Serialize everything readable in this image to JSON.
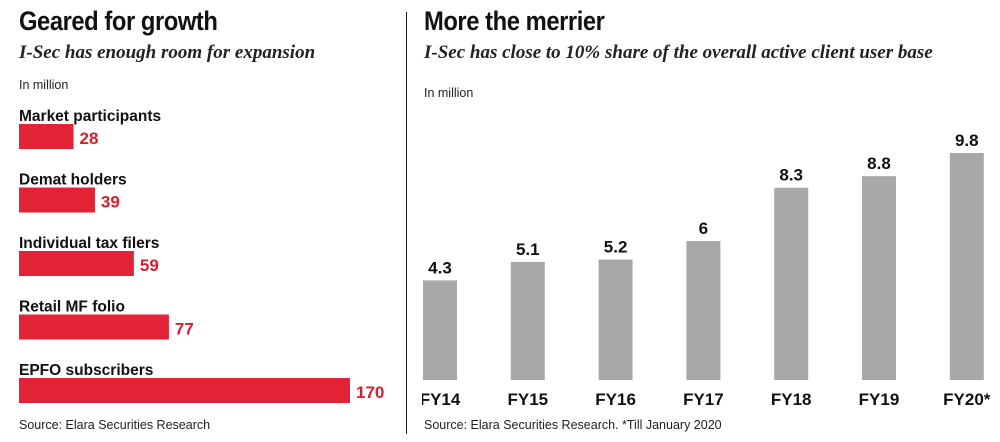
{
  "colors": {
    "left_bar": "#e32235",
    "left_value": "#d81e2e",
    "right_bar": "#a7a8aa",
    "text": "#111111"
  },
  "left": {
    "title": "Geared for growth",
    "subtitle": "I-Sec has enough room for expansion",
    "unit": "In million",
    "source": "Source: Elara Securities Research"
  },
  "right": {
    "title": "More the merrier",
    "subtitle": "I-Sec has close to 10% share of the overall active client user base",
    "unit": "In million",
    "source": "Source: Elara Securities Research. *Till January 2020"
  },
  "chart_data": [
    {
      "type": "bar",
      "orientation": "horizontal",
      "title": "Geared for growth",
      "subtitle": "I-Sec has enough room for expansion",
      "unit": "In million",
      "categories": [
        "Market participants",
        "Demat holders",
        "Individual tax filers",
        "Retail MF folio",
        "EPFO subscribers"
      ],
      "values": [
        28,
        39,
        59,
        77,
        170
      ],
      "xlim": [
        0,
        170
      ],
      "grid": false,
      "legend": "none"
    },
    {
      "type": "bar",
      "orientation": "vertical",
      "title": "More the merrier",
      "subtitle": "I-Sec has close to 10% share of the overall active client user base",
      "unit": "In million",
      "categories": [
        "FY14",
        "FY15",
        "FY16",
        "FY17",
        "FY18",
        "FY19",
        "FY20*"
      ],
      "values": [
        4.3,
        5.1,
        5.2,
        6,
        8.3,
        8.8,
        9.8
      ],
      "ylim": [
        0,
        9.8
      ],
      "grid": false,
      "legend": "none"
    }
  ]
}
